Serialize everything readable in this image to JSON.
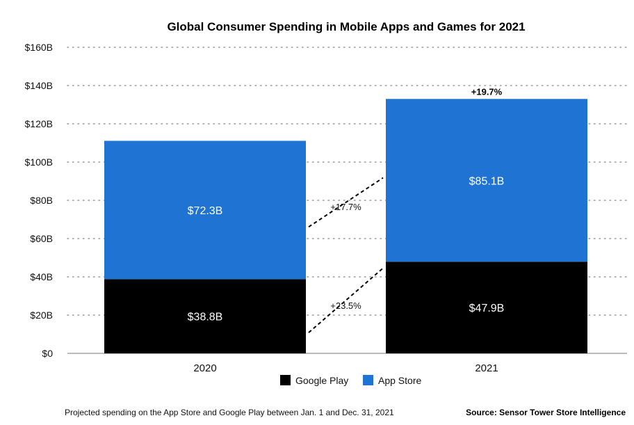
{
  "chart_data": {
    "type": "bar",
    "stacked": true,
    "title": "Global Consumer Spending in Mobile Apps and Games for 2021",
    "xlabel": "",
    "ylabel": "",
    "categories": [
      "2020",
      "2021"
    ],
    "series": [
      {
        "name": "Google Play",
        "color": "#000000",
        "values": [
          38.8,
          47.9
        ],
        "labels": [
          "$38.8B",
          "$47.9B"
        ]
      },
      {
        "name": "App Store",
        "color": "#1f73d2",
        "values": [
          72.3,
          85.1
        ],
        "labels": [
          "$72.3B",
          "$85.1B"
        ]
      }
    ],
    "ylim": [
      0,
      160
    ],
    "yticks": [
      0,
      20,
      40,
      60,
      80,
      100,
      120,
      140,
      160
    ],
    "ytick_labels": [
      "$0",
      "$20B",
      "$40B",
      "$60B",
      "$80B",
      "$100B",
      "$120B",
      "$140B",
      "$160B"
    ],
    "grid": true,
    "legend": [
      "Google Play",
      "App Store"
    ],
    "legend_position": "bottom-center",
    "annotations": {
      "total_growth": "+19.7%",
      "app_store_growth": "+17.7%",
      "google_play_growth": "+23.5%"
    }
  },
  "footer": {
    "note": "Projected spending on the App Store and Google Play between Jan. 1 and Dec. 31, 2021",
    "source": "Source: Sensor Tower Store Intelligence"
  }
}
